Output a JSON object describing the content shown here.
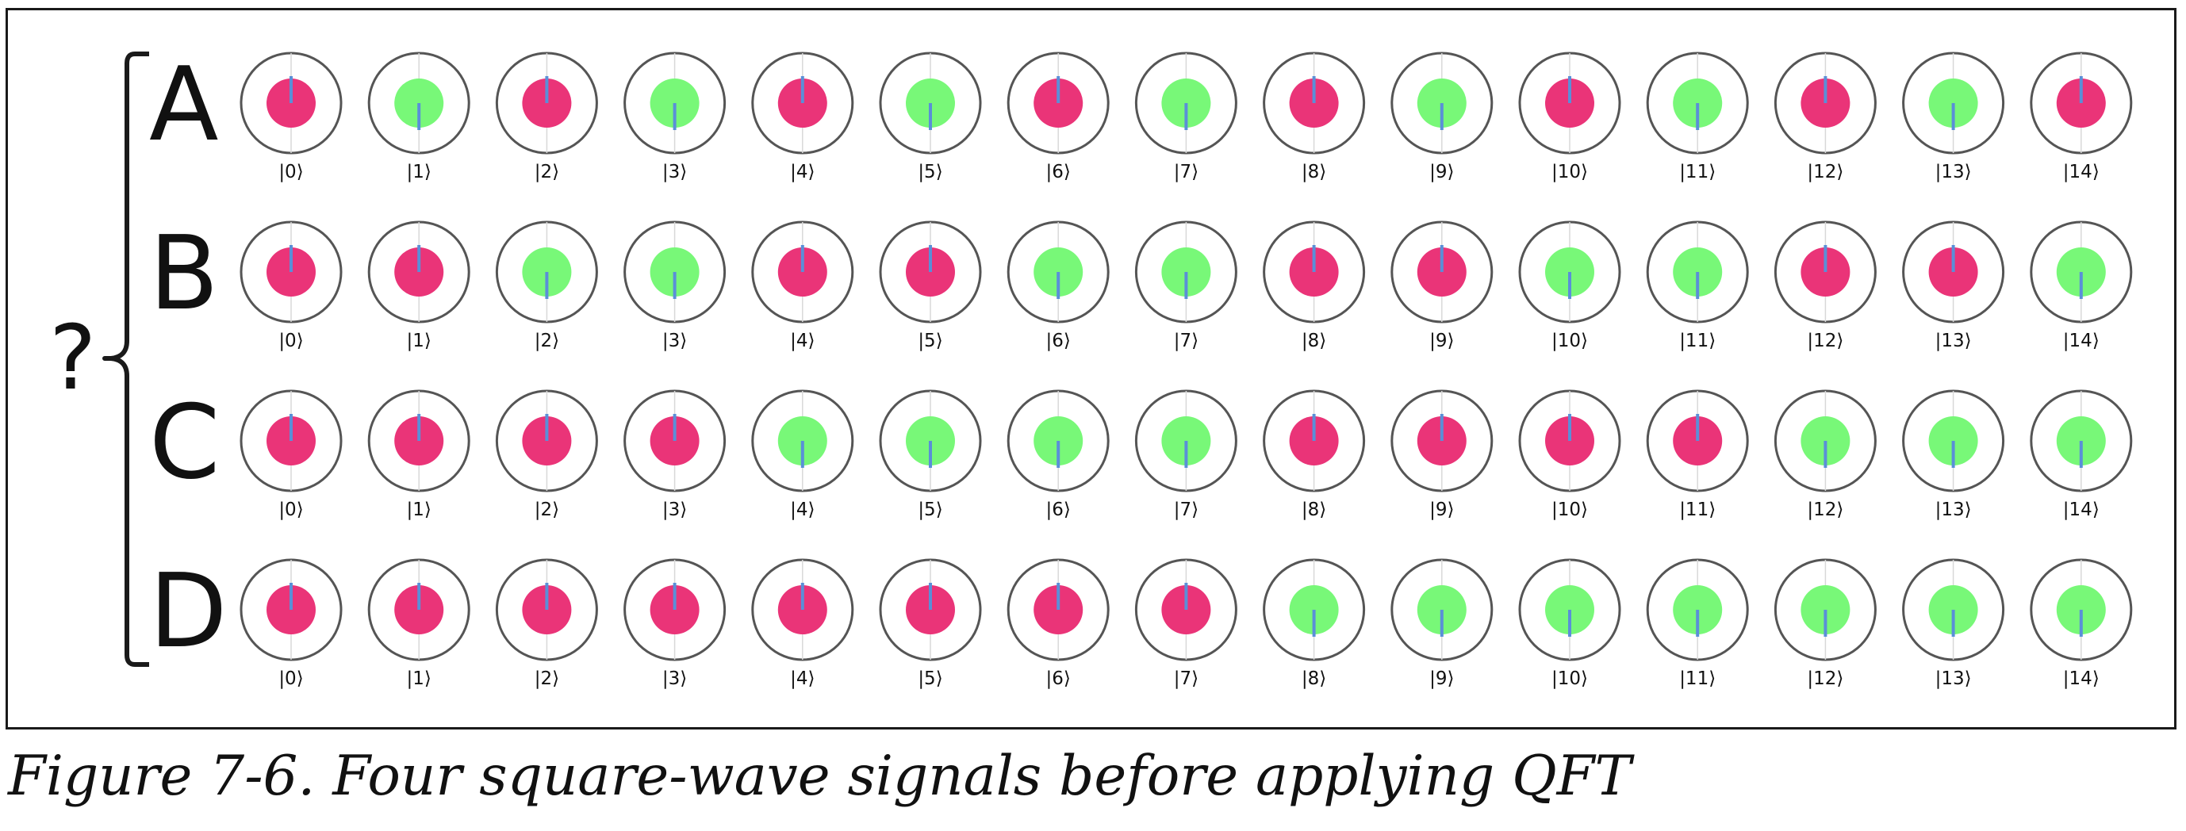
{
  "figure": {
    "question_mark": "?",
    "caption": "Figure 7-6. Four square-wave signals before applying QFT"
  },
  "colors": {
    "positive": "#ea3478",
    "negative": "#78f878",
    "phase_line": "#5a8fd8",
    "circle_stroke": "#555555",
    "background": "#ffffff"
  },
  "rows": [
    {
      "label": "A",
      "phases": [
        "+",
        "-",
        "+",
        "-",
        "+",
        "-",
        "+",
        "-",
        "+",
        "-",
        "+",
        "-",
        "+",
        "-",
        "+"
      ]
    },
    {
      "label": "B",
      "phases": [
        "+",
        "+",
        "-",
        "-",
        "+",
        "+",
        "-",
        "-",
        "+",
        "+",
        "-",
        "-",
        "+",
        "+",
        "-"
      ]
    },
    {
      "label": "C",
      "phases": [
        "+",
        "+",
        "+",
        "+",
        "-",
        "-",
        "-",
        "-",
        "+",
        "+",
        "+",
        "+",
        "-",
        "-",
        "-"
      ]
    },
    {
      "label": "D",
      "phases": [
        "+",
        "+",
        "+",
        "+",
        "+",
        "+",
        "+",
        "+",
        "-",
        "-",
        "-",
        "-",
        "-",
        "-",
        "-"
      ]
    }
  ],
  "ket_labels": [
    "|0⟩",
    "|1⟩",
    "|2⟩",
    "|3⟩",
    "|4⟩",
    "|5⟩",
    "|6⟩",
    "|7⟩",
    "|8⟩",
    "|9⟩",
    "|10⟩",
    "|11⟩",
    "|12⟩",
    "|13⟩",
    "|14⟩"
  ]
}
